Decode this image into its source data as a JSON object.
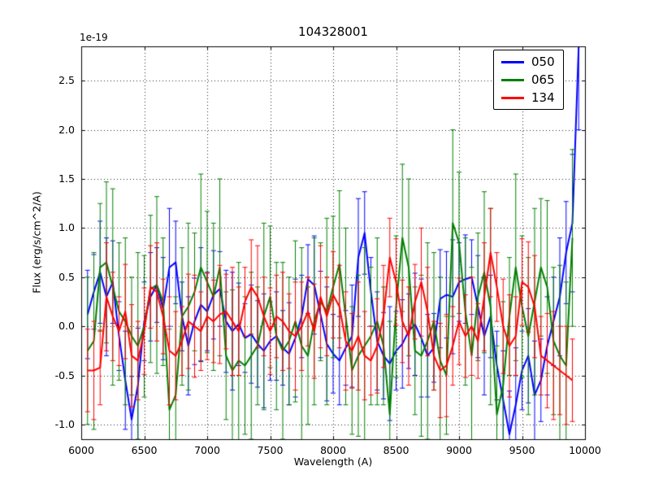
{
  "figure": {
    "title": "104328001",
    "offset_label": "1e-19",
    "xlabel": "Wavelength (A)",
    "ylabel": "Flux (erg/s/cm^2/A)"
  },
  "chart_data": {
    "type": "line",
    "title": "104328001",
    "xlabel": "Wavelength (A)",
    "ylabel": "Flux (erg/s/cm^2/A)",
    "y_scale_factor": "1e-19",
    "grid": true,
    "legend_position": "upper right",
    "xlim": [
      6000,
      10000
    ],
    "ylim": [
      -1.15,
      2.85
    ],
    "xticks": [
      6000,
      6500,
      7000,
      7500,
      8000,
      8500,
      9000,
      9500,
      10000
    ],
    "yticks": [
      -1.0,
      -0.5,
      0.0,
      0.5,
      1.0,
      1.5,
      2.0,
      2.5
    ],
    "x_start": 6050,
    "x_step": 50,
    "series": [
      {
        "name": "050",
        "color": "#0000ff",
        "values": [
          0.12,
          0.35,
          0.55,
          0.3,
          0.45,
          -0.1,
          -0.55,
          -0.95,
          -0.6,
          0.05,
          0.3,
          0.42,
          0.18,
          0.6,
          0.65,
          0.1,
          -0.2,
          0.05,
          0.22,
          0.15,
          0.32,
          0.38,
          0.05,
          -0.05,
          0.02,
          -0.12,
          -0.08,
          -0.18,
          -0.25,
          -0.15,
          -0.1,
          -0.22,
          -0.28,
          -0.12,
          0.1,
          0.48,
          0.42,
          0.12,
          -0.18,
          -0.28,
          -0.35,
          -0.22,
          -0.1,
          0.7,
          0.95,
          0.35,
          -0.15,
          -0.3,
          -0.38,
          -0.25,
          -0.18,
          -0.05,
          0.02,
          -0.12,
          -0.3,
          -0.22,
          0.28,
          0.32,
          0.3,
          0.45,
          0.48,
          0.5,
          0.2,
          -0.1,
          0.1,
          -0.4,
          -0.75,
          -1.1,
          -0.8,
          -0.45,
          -0.3,
          -0.7,
          -0.55,
          -0.2,
          0.05,
          0.3,
          0.75,
          1.05,
          2.85
        ],
        "errors": [
          0.45,
          0.38,
          0.52,
          0.6,
          0.42,
          0.35,
          0.5,
          0.44,
          0.58,
          0.4,
          0.45,
          0.38,
          0.52,
          0.6,
          0.42,
          0.35,
          0.5,
          0.44,
          0.58,
          0.4,
          0.45,
          0.38,
          0.52,
          0.6,
          0.42,
          0.35,
          0.5,
          0.44,
          0.58,
          0.4,
          0.45,
          0.38,
          0.52,
          0.6,
          0.42,
          0.35,
          0.5,
          0.44,
          0.58,
          0.4,
          0.45,
          0.38,
          0.52,
          0.6,
          0.42,
          0.35,
          0.5,
          0.44,
          0.58,
          0.4,
          0.45,
          0.38,
          0.52,
          0.6,
          0.42,
          0.35,
          0.5,
          0.44,
          0.58,
          0.4,
          0.45,
          0.38,
          0.52,
          0.6,
          0.42,
          0.35,
          0.5,
          0.44,
          0.58,
          0.4,
          0.48,
          0.55,
          0.42,
          0.5,
          0.45,
          0.6,
          0.52,
          0.7,
          0.85
        ]
      },
      {
        "name": "065",
        "color": "#008000",
        "values": [
          -0.25,
          -0.15,
          0.6,
          0.65,
          0.4,
          0.15,
          0.05,
          -0.1,
          -0.2,
          0.0,
          0.38,
          0.42,
          0.25,
          -0.85,
          -0.7,
          0.1,
          0.2,
          0.35,
          0.6,
          0.45,
          0.3,
          0.6,
          -0.3,
          -0.45,
          -0.35,
          -0.4,
          -0.3,
          -0.2,
          0.1,
          0.3,
          -0.1,
          -0.25,
          -0.15,
          0.05,
          -0.2,
          -0.3,
          0.05,
          0.25,
          0.15,
          0.4,
          0.63,
          0.1,
          -0.45,
          -0.3,
          -0.2,
          -0.1,
          0.05,
          -0.2,
          -0.9,
          0.2,
          0.9,
          0.6,
          -0.25,
          -0.3,
          -0.15,
          0.05,
          -0.35,
          -0.5,
          1.05,
          0.85,
          0.15,
          -0.3,
          0.3,
          0.55,
          0.2,
          -0.9,
          -0.6,
          0.1,
          0.6,
          0.2,
          -0.1,
          0.25,
          0.6,
          0.4,
          -0.15,
          -0.3,
          -0.4,
          0.9,
          null
        ],
        "errors": [
          0.75,
          0.9,
          0.65,
          0.82,
          1.0,
          0.7,
          0.85,
          0.6,
          0.95,
          0.72,
          0.75,
          0.9,
          0.65,
          0.82,
          1.0,
          0.7,
          0.85,
          0.6,
          0.95,
          0.72,
          0.75,
          0.9,
          0.65,
          0.82,
          1.0,
          0.7,
          0.85,
          0.6,
          0.95,
          0.72,
          0.75,
          0.9,
          0.65,
          0.82,
          1.0,
          0.7,
          0.85,
          0.6,
          0.95,
          0.72,
          0.75,
          0.9,
          0.65,
          0.82,
          1.0,
          0.7,
          0.85,
          0.6,
          0.95,
          0.72,
          0.75,
          0.9,
          0.65,
          0.82,
          1.0,
          0.7,
          0.85,
          0.6,
          0.95,
          0.72,
          0.75,
          0.9,
          0.65,
          0.82,
          1.0,
          0.7,
          0.85,
          0.6,
          0.95,
          0.72,
          0.8,
          0.95,
          0.7,
          0.88,
          0.75,
          0.92,
          0.85,
          0.9,
          null
        ]
      },
      {
        "name": "134",
        "color": "#ff0000",
        "values": [
          -0.45,
          -0.45,
          -0.42,
          0.3,
          0.1,
          -0.05,
          0.15,
          -0.3,
          -0.35,
          -0.05,
          0.4,
          0.35,
          0.1,
          -0.25,
          -0.3,
          -0.15,
          0.05,
          0.0,
          -0.05,
          0.1,
          0.05,
          0.12,
          0.15,
          0.05,
          -0.05,
          0.25,
          0.4,
          0.3,
          0.1,
          -0.05,
          0.1,
          0.05,
          -0.05,
          -0.1,
          0.0,
          0.15,
          -0.05,
          0.3,
          0.1,
          0.32,
          0.2,
          -0.15,
          -0.25,
          -0.1,
          -0.3,
          -0.35,
          -0.2,
          0.1,
          0.7,
          0.45,
          0.05,
          -0.1,
          0.25,
          0.45,
          0.15,
          -0.3,
          -0.45,
          -0.4,
          -0.2,
          0.05,
          -0.1,
          0.0,
          -0.15,
          0.3,
          0.75,
          0.4,
          0.0,
          -0.2,
          -0.1,
          0.45,
          0.4,
          0.2,
          -0.3,
          -0.35,
          -0.4,
          -0.45,
          -0.5,
          -0.55,
          null
        ],
        "errors": [
          0.42,
          0.5,
          0.38,
          0.55,
          0.45,
          0.35,
          0.48,
          0.52,
          0.4,
          0.44,
          0.42,
          0.5,
          0.38,
          0.55,
          0.45,
          0.35,
          0.48,
          0.52,
          0.4,
          0.44,
          0.42,
          0.5,
          0.38,
          0.55,
          0.45,
          0.35,
          0.48,
          0.52,
          0.4,
          0.44,
          0.42,
          0.5,
          0.38,
          0.55,
          0.45,
          0.35,
          0.48,
          0.52,
          0.4,
          0.44,
          0.42,
          0.5,
          0.38,
          0.55,
          0.45,
          0.35,
          0.48,
          0.52,
          0.4,
          0.44,
          0.42,
          0.5,
          0.38,
          0.55,
          0.45,
          0.35,
          0.48,
          0.52,
          0.4,
          0.44,
          0.42,
          0.5,
          0.38,
          0.55,
          0.45,
          0.35,
          0.48,
          0.52,
          0.4,
          0.44,
          0.46,
          0.52,
          0.4,
          0.48,
          0.55,
          0.45,
          0.5,
          0.42,
          null
        ]
      }
    ]
  }
}
